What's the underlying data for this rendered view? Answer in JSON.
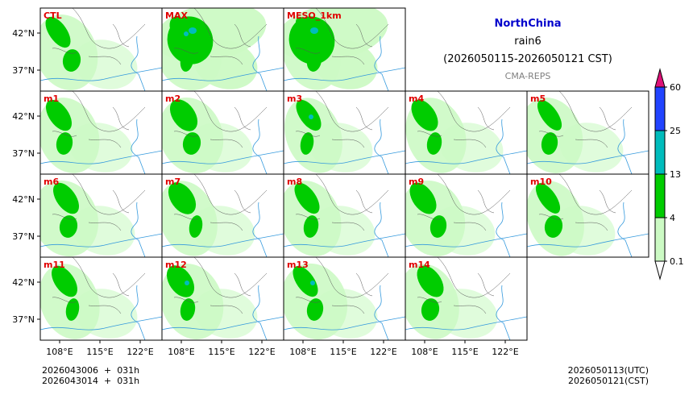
{
  "title": "NorthChina",
  "variable": "rain6",
  "period": "(2026050115-2026050121 CST)",
  "source": "CMA-REPS",
  "panels": [
    {
      "label": "CTL"
    },
    {
      "label": "MAX"
    },
    {
      "label": "MESO_1km"
    },
    {
      "label": "m1"
    },
    {
      "label": "m2"
    },
    {
      "label": "m3"
    },
    {
      "label": "m4"
    },
    {
      "label": "m5"
    },
    {
      "label": "m6"
    },
    {
      "label": "m7"
    },
    {
      "label": "m8"
    },
    {
      "label": "m9"
    },
    {
      "label": "m10"
    },
    {
      "label": "m11"
    },
    {
      "label": "m12"
    },
    {
      "label": "m13"
    },
    {
      "label": "m14"
    }
  ],
  "lat_ticks": [
    "42°N",
    "37°N"
  ],
  "lon_ticks": [
    "108°E",
    "115°E",
    "122°E"
  ],
  "colorbar": {
    "levels": [
      "0.1",
      "4",
      "13",
      "25",
      "60"
    ],
    "colors": [
      "#ccfac4",
      "#00cc00",
      "#00bcbc",
      "#2244ff"
    ],
    "under_color": "#ffffff",
    "over_color": "#dd1177"
  },
  "init_times": [
    "2026043006  +  031h",
    "2026043014  +  031h"
  ],
  "valid_utc": "2026050113(UTC)",
  "valid_cst": "2026050121(CST)",
  "colors": {
    "title": "#0000cc",
    "panel_label": "#e00000",
    "source": "#808080",
    "rain_light": "#ccfac4",
    "rain_moderate": "#00cc00",
    "rain_heavy": "#00bcbc",
    "rain_severe": "#2244ff",
    "river": "#3399dd",
    "border": "#555555"
  }
}
